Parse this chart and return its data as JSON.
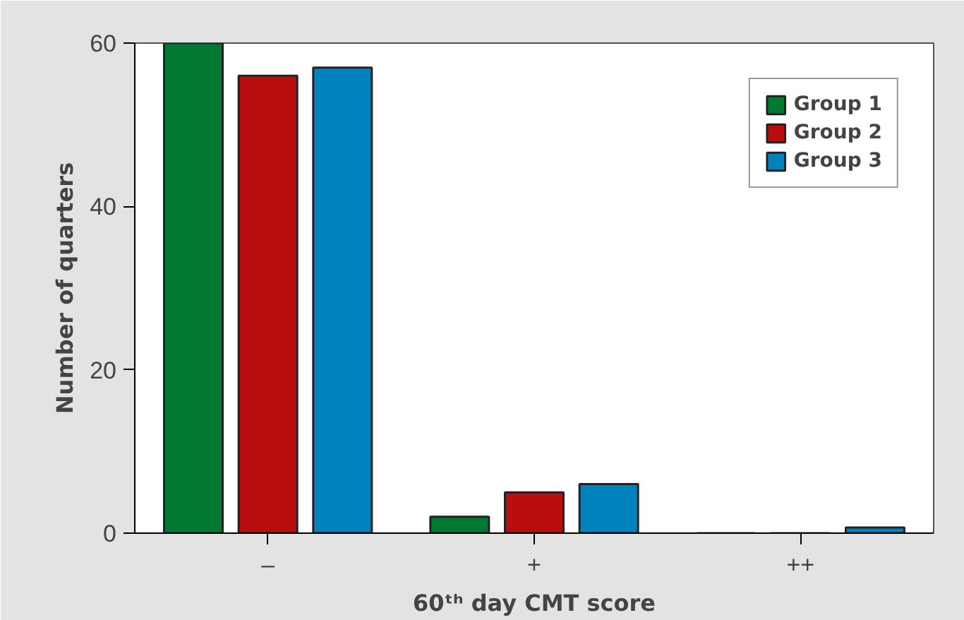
{
  "chart_data": {
    "type": "bar",
    "xlabel": "60ᵗʰ day CMT score",
    "ylabel": "Number of quarters",
    "categories": [
      "–",
      "+",
      "++"
    ],
    "series": [
      {
        "name": "Group 1",
        "color": "#007a33",
        "values": [
          60,
          2,
          0
        ]
      },
      {
        "name": "Group 2",
        "color": "#b90e0e",
        "values": [
          56,
          5,
          0
        ]
      },
      {
        "name": "Group 3",
        "color": "#0083bc",
        "values": [
          57,
          6,
          0.7
        ]
      }
    ],
    "ylim": [
      0,
      60
    ],
    "yticks": [
      0,
      20,
      40,
      60
    ],
    "grid": false,
    "legend": "top right"
  }
}
